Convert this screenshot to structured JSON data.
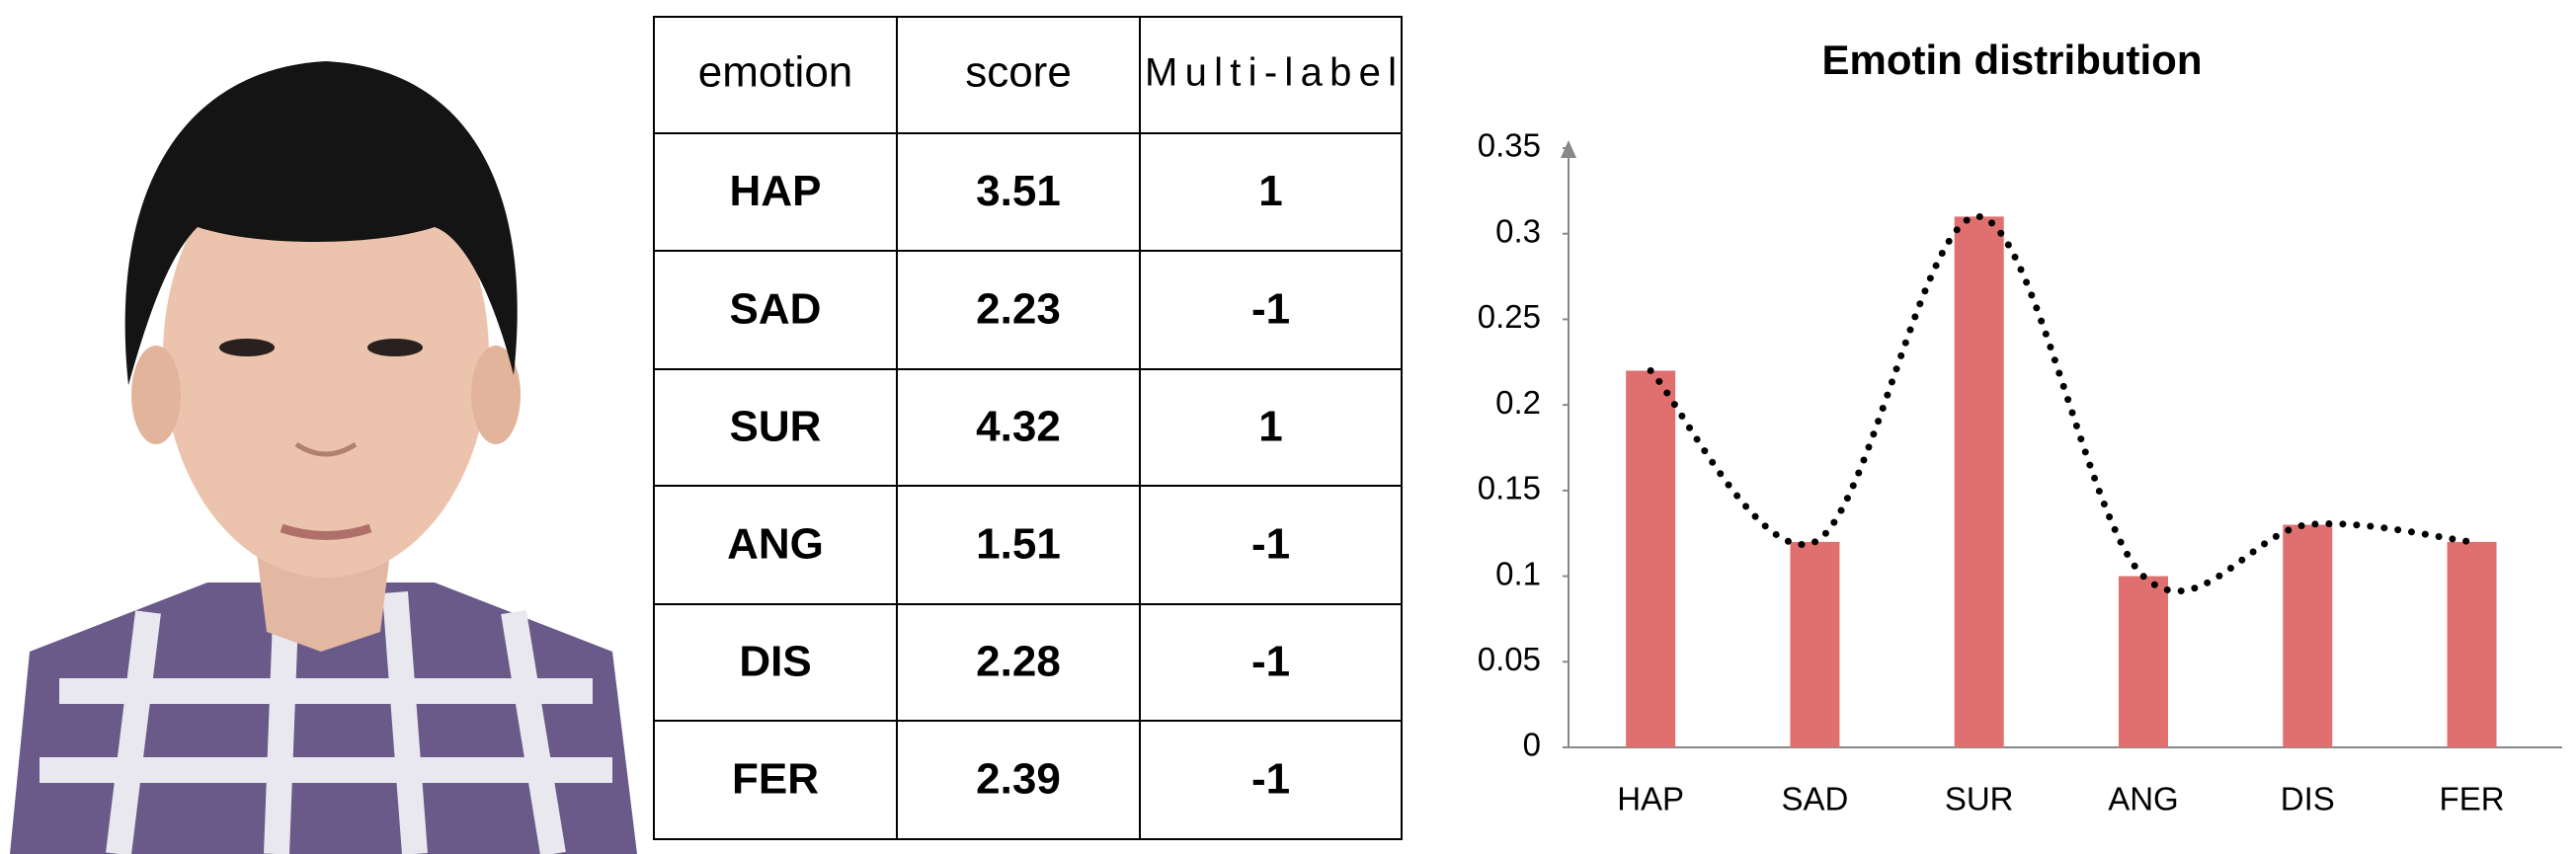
{
  "table": {
    "header": [
      "emotion",
      "score",
      "Multi-label"
    ],
    "rows": [
      [
        "HAP",
        "3.51",
        "1"
      ],
      [
        "SAD",
        "2.23",
        "-1"
      ],
      [
        "SUR",
        "4.32",
        "1"
      ],
      [
        "ANG",
        "1.51",
        "-1"
      ],
      [
        "DIS",
        "2.28",
        "-1"
      ],
      [
        "FER",
        "2.39",
        "-1"
      ]
    ]
  },
  "chart_data": {
    "type": "bar",
    "title": "Emotin distribution",
    "categories": [
      "HAP",
      "SAD",
      "SUR",
      "ANG",
      "DIS",
      "FER"
    ],
    "values": [
      0.22,
      0.12,
      0.31,
      0.1,
      0.13,
      0.12
    ],
    "color": "#e07070",
    "line_color": "#000000",
    "ylim": [
      0,
      0.35
    ],
    "yticks": [
      0,
      0.05,
      0.1,
      0.15,
      0.2,
      0.25,
      0.3,
      0.35
    ],
    "grid": false
  }
}
